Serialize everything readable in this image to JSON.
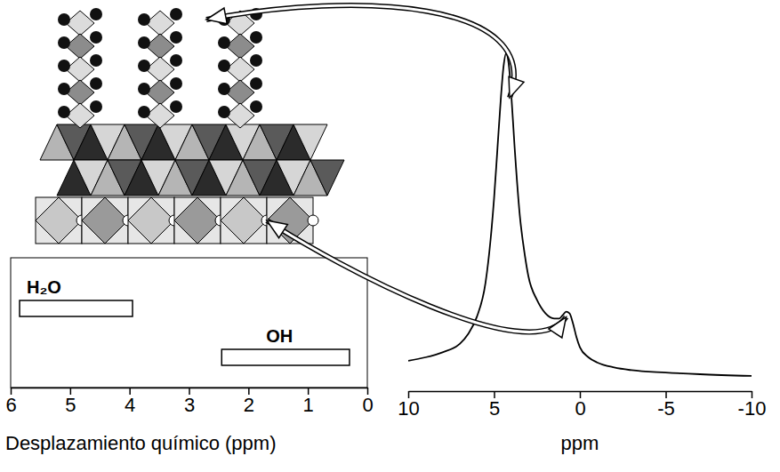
{
  "chart_data": [
    {
      "type": "range",
      "series": [
        {
          "name": "H₂O",
          "values": [
            5.85,
            3.95
          ]
        },
        {
          "name": "OH",
          "values": [
            2.45,
            0.3
          ]
        }
      ],
      "color": "#ffffff",
      "x_label": "Desplazamiento químico (ppm)",
      "xlim": [
        6,
        0
      ],
      "xticks": [
        6,
        5,
        4,
        3,
        2,
        1,
        0
      ],
      "tick_labels": "x"
    },
    {
      "type": "line",
      "x": [
        10,
        9,
        8,
        7,
        6.5,
        6,
        5.5,
        5.2,
        5,
        4.8,
        4.6,
        4.45,
        4.3,
        4.15,
        4.0,
        3.8,
        3.5,
        3.2,
        3.0,
        2.5,
        2.0,
        1.5,
        1.2,
        1.0,
        0.8,
        0.6,
        0.4,
        0.2,
        0,
        -0.5,
        -1,
        -2,
        -3,
        -5,
        -7,
        -10
      ],
      "values": [
        9,
        10,
        11.5,
        14,
        17,
        22,
        32,
        45,
        57,
        72,
        87,
        96,
        100,
        97,
        88,
        72,
        52,
        40,
        34,
        27,
        23,
        21.5,
        21.5,
        22.5,
        23.5,
        23,
        20,
        16,
        13,
        10,
        8.5,
        7,
        6.2,
        5.5,
        5,
        4.5
      ],
      "color": "#000000",
      "x_label": "ppm",
      "xlim": [
        10,
        -10
      ],
      "xticks": [
        10,
        5,
        0,
        -5,
        -10
      ],
      "ylim": [
        0,
        100
      ],
      "tick_labels": "x"
    }
  ]
}
